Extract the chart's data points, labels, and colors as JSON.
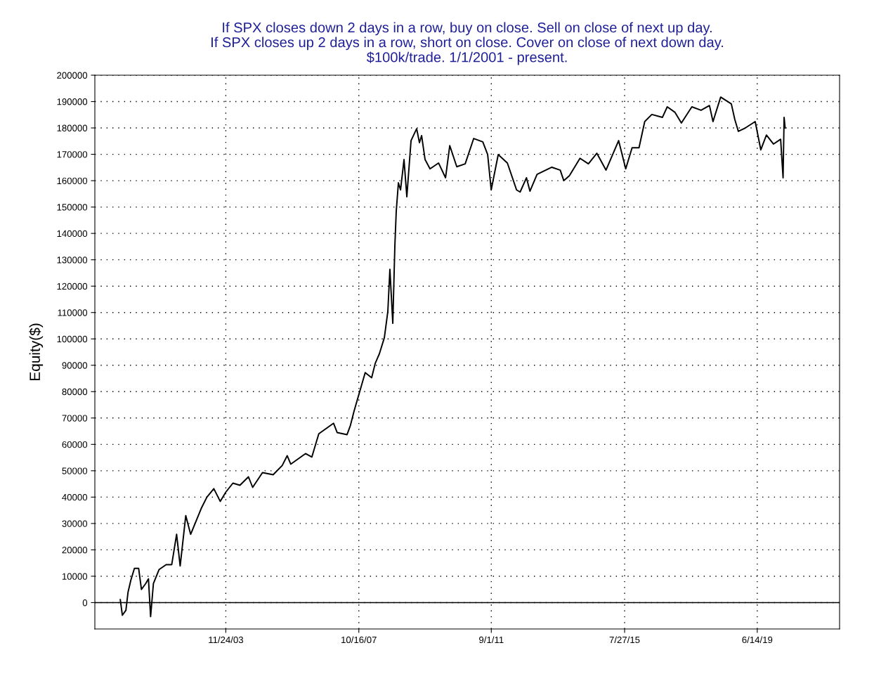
{
  "chart_data": {
    "type": "line",
    "title": "If SPX closes down 2 days in a row, buy on close. Sell on close of next up day.\nIf SPX closes up 2 days in a row, short on close. Cover on close of next down day.\n$100k/trade. 1/1/2001 - present.",
    "ylabel": "Equity($)",
    "x": [
      "2000-10-22",
      "2000-11-13",
      "2000-12-21",
      "2001-01-13",
      "2001-02-12",
      "2001-03-22",
      "2001-05-06",
      "2001-06-05",
      "2001-07-20",
      "2001-08-19",
      "2001-09-11",
      "2001-10-11",
      "2001-12-10",
      "2002-02-24",
      "2002-04-25",
      "2002-06-16",
      "2002-07-24",
      "2002-09-22",
      "2002-11-13",
      "2003-03-06",
      "2003-05-06",
      "2003-07-19",
      "2003-09-25",
      "2003-11-24",
      "2004-02-08",
      "2004-04-23",
      "2004-07-23",
      "2004-09-06",
      "2004-12-20",
      "2005-04-13",
      "2005-07-19",
      "2005-09-10",
      "2005-10-18",
      "2006-03-25",
      "2006-06-01",
      "2006-07-15",
      "2006-08-14",
      "2007-01-19",
      "2007-02-26",
      "2007-06-12",
      "2007-07-18",
      "2007-08-25",
      "2007-12-23",
      "2008-03-01",
      "2008-04-08",
      "2008-05-23",
      "2008-07-15",
      "2008-08-21",
      "2008-09-12",
      "2008-10-13",
      "2008-11-04",
      "2008-11-19",
      "2008-12-12",
      "2009-01-04",
      "2009-02-10",
      "2009-03-12",
      "2009-04-26",
      "2009-06-25",
      "2009-07-25",
      "2009-08-17",
      "2009-09-23",
      "2009-11-15",
      "2010-02-14",
      "2010-04-30",
      "2010-06-14",
      "2010-08-28",
      "2010-11-26",
      "2011-02-25",
      "2011-06-02",
      "2011-07-24",
      "2011-08-31",
      "2011-11-14",
      "2012-02-20",
      "2012-05-28",
      "2012-07-05",
      "2012-09-11",
      "2012-10-18",
      "2013-01-02",
      "2013-06-09",
      "2013-09-07",
      "2013-10-15",
      "2013-12-14",
      "2014-04-06",
      "2014-07-05",
      "2014-10-03",
      "2015-01-09",
      "2015-05-24",
      "2015-08-08",
      "2015-10-15",
      "2015-12-28",
      "2016-02-27",
      "2016-05-13",
      "2016-09-03",
      "2016-10-25",
      "2017-01-16",
      "2017-03-25",
      "2017-07-15",
      "2017-10-21",
      "2018-01-19",
      "2018-02-26",
      "2018-05-19",
      "2018-09-10",
      "2018-10-17",
      "2018-11-24",
      "2019-02-07",
      "2019-05-23",
      "2019-07-22",
      "2019-09-20",
      "2019-12-04",
      "2020-02-19",
      "2020-03-16",
      "2020-03-27",
      "2020-04-07"
    ],
    "series": [
      {
        "color": "#000000",
        "values": [
          1100,
          -4800,
          -2900,
          4000,
          8500,
          13000,
          13000,
          5000,
          7200,
          9000,
          -5300,
          7200,
          12500,
          14400,
          14400,
          25900,
          13900,
          33000,
          25900,
          35700,
          40000,
          43200,
          38400,
          41900,
          45300,
          44500,
          47700,
          43700,
          49300,
          48500,
          52000,
          55700,
          52500,
          56500,
          55200,
          60500,
          64000,
          68000,
          64500,
          63700,
          67200,
          72500,
          87200,
          85300,
          90700,
          94400,
          100500,
          110400,
          126400,
          105900,
          135200,
          148500,
          159200,
          156500,
          168000,
          153900,
          175200,
          179700,
          174400,
          177100,
          168000,
          164500,
          166700,
          161100,
          173300,
          165300,
          166400,
          176000,
          174700,
          169900,
          156500,
          169900,
          166700,
          156500,
          155700,
          161100,
          156000,
          162400,
          165100,
          164000,
          160000,
          161900,
          168500,
          166400,
          170400,
          164000,
          175200,
          164500,
          172500,
          172500,
          182400,
          185100,
          184000,
          188000,
          185900,
          181900,
          188000,
          186700,
          188500,
          182400,
          191700,
          189100,
          183200,
          178700,
          180000,
          182400,
          171700,
          177300,
          173900,
          175700,
          161100,
          184000,
          180000
        ]
      }
    ],
    "xlim": [
      "2000-01-24",
      "2021-11-10"
    ],
    "xticks": [
      {
        "value": "2003-11-24",
        "label": "11/24/03"
      },
      {
        "value": "2007-10-16",
        "label": "10/16/07"
      },
      {
        "value": "2011-09-01",
        "label": "9/1/11"
      },
      {
        "value": "2015-07-27",
        "label": "7/27/15"
      },
      {
        "value": "2019-06-14",
        "label": "6/14/19"
      }
    ],
    "ylim": [
      -10000,
      200000
    ],
    "yticks": [
      0,
      10000,
      20000,
      30000,
      40000,
      50000,
      60000,
      70000,
      80000,
      90000,
      100000,
      110000,
      120000,
      130000,
      140000,
      150000,
      160000,
      170000,
      180000,
      190000,
      200000
    ],
    "ref_lines": [
      {
        "axis": "y",
        "value": 0,
        "color": "#000000"
      }
    ],
    "grid": true,
    "legend": false,
    "line_style": "solid",
    "marker": "none"
  }
}
